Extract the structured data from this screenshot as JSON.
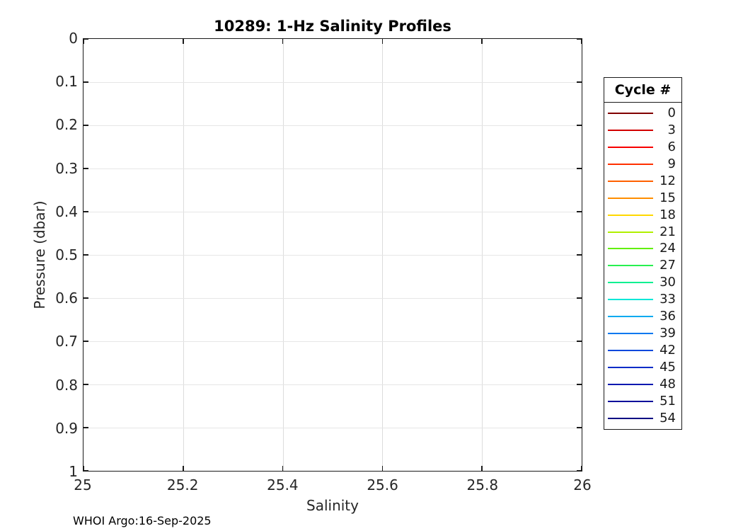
{
  "title": "10289: 1-Hz Salinity Profiles",
  "footer": "WHOI Argo:16-Sep-2025",
  "axes": {
    "xlabel": "Salinity",
    "ylabel": "Pressure (dbar)",
    "xlim": [
      25,
      26
    ],
    "ylim": [
      0,
      1
    ],
    "grid": true,
    "x_ticks": [
      {
        "value": 25,
        "label": "25"
      },
      {
        "value": 25.2,
        "label": "25.2"
      },
      {
        "value": 25.4,
        "label": "25.4"
      },
      {
        "value": 25.6,
        "label": "25.6"
      },
      {
        "value": 25.8,
        "label": "25.8"
      },
      {
        "value": 26,
        "label": "26"
      }
    ],
    "y_ticks": [
      {
        "value": 0,
        "label": "0"
      },
      {
        "value": 0.1,
        "label": "0.1"
      },
      {
        "value": 0.2,
        "label": "0.2"
      },
      {
        "value": 0.3,
        "label": "0.3"
      },
      {
        "value": 0.4,
        "label": "0.4"
      },
      {
        "value": 0.5,
        "label": "0.5"
      },
      {
        "value": 0.6,
        "label": "0.6"
      },
      {
        "value": 0.7,
        "label": "0.7"
      },
      {
        "value": 0.8,
        "label": "0.8"
      },
      {
        "value": 0.9,
        "label": "0.9"
      },
      {
        "value": 1,
        "label": "1"
      }
    ]
  },
  "legend": {
    "title": "Cycle #",
    "entries": [
      {
        "label": "0",
        "color": "#800000"
      },
      {
        "label": "3",
        "color": "#D20000"
      },
      {
        "label": "6",
        "color": "#F80000"
      },
      {
        "label": "9",
        "color": "#FF3000"
      },
      {
        "label": "12",
        "color": "#FF6000"
      },
      {
        "label": "15",
        "color": "#FF8E00"
      },
      {
        "label": "18",
        "color": "#FFD800"
      },
      {
        "label": "21",
        "color": "#B0F000"
      },
      {
        "label": "24",
        "color": "#62F000"
      },
      {
        "label": "27",
        "color": "#28F050"
      },
      {
        "label": "30",
        "color": "#00F090"
      },
      {
        "label": "33",
        "color": "#00E8D8"
      },
      {
        "label": "36",
        "color": "#00AAF0"
      },
      {
        "label": "39",
        "color": "#0078F0"
      },
      {
        "label": "42",
        "color": "#0048DC"
      },
      {
        "label": "45",
        "color": "#002CC8"
      },
      {
        "label": "48",
        "color": "#0018B0"
      },
      {
        "label": "51",
        "color": "#000A9A"
      },
      {
        "label": "54",
        "color": "#000082"
      }
    ]
  },
  "chart_data": {
    "type": "line",
    "title": "10289: 1-Hz Salinity Profiles",
    "xlabel": "Salinity",
    "ylabel": "Pressure (dbar)",
    "xlim": [
      25,
      26
    ],
    "ylim": [
      0,
      1
    ],
    "y_direction": "reverse",
    "grid": true,
    "x_tick_labels": [
      "25",
      "25.2",
      "25.4",
      "25.6",
      "25.8",
      "26"
    ],
    "y_tick_labels": [
      "0",
      "0.1",
      "0.2",
      "0.3",
      "0.4",
      "0.5",
      "0.6",
      "0.7",
      "0.8",
      "0.9",
      "1"
    ],
    "legend_title": "Cycle #",
    "legend_labels": [
      "0",
      "3",
      "6",
      "9",
      "12",
      "15",
      "18",
      "21",
      "24",
      "27",
      "30",
      "33",
      "36",
      "39",
      "42",
      "45",
      "48",
      "51",
      "54"
    ],
    "legend_position": "right-outside",
    "series": [],
    "note_text": "WHOI Argo:16-Sep-2025"
  }
}
